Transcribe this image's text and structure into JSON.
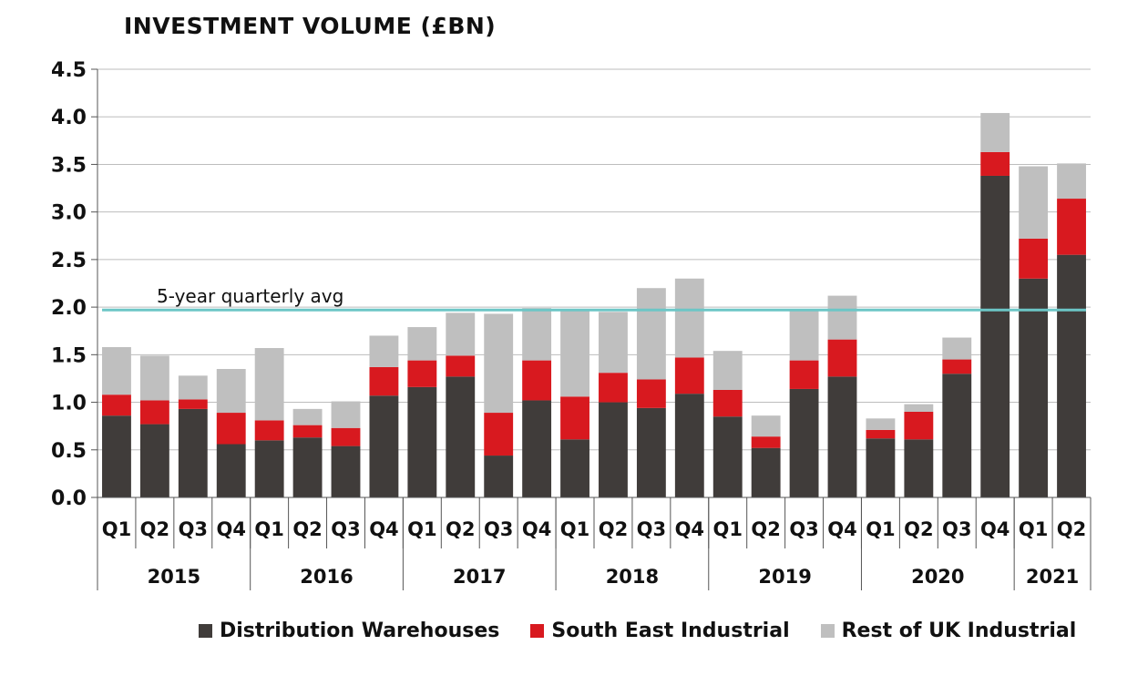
{
  "chart_data": {
    "type": "bar",
    "stacked": true,
    "title": "INVESTMENT VOLUME (£BN)",
    "ylim": [
      0,
      4.5
    ],
    "yticks": [
      "0.0",
      "0.5",
      "1.0",
      "1.5",
      "2.0",
      "2.5",
      "3.0",
      "3.5",
      "4.0",
      "4.5"
    ],
    "grid": true,
    "categories": [
      "Q1",
      "Q2",
      "Q3",
      "Q4",
      "Q1",
      "Q2",
      "Q3",
      "Q4",
      "Q1",
      "Q2",
      "Q3",
      "Q4",
      "Q1",
      "Q2",
      "Q3",
      "Q4",
      "Q1",
      "Q2",
      "Q3",
      "Q4",
      "Q1",
      "Q2",
      "Q3",
      "Q4",
      "Q1",
      "Q2"
    ],
    "years": [
      {
        "label": "2015",
        "count": 4
      },
      {
        "label": "2016",
        "count": 4
      },
      {
        "label": "2017",
        "count": 4
      },
      {
        "label": "2018",
        "count": 4
      },
      {
        "label": "2019",
        "count": 4
      },
      {
        "label": "2020",
        "count": 4
      },
      {
        "label": "2021",
        "count": 2
      }
    ],
    "series": [
      {
        "name": "Distribution Warehouses",
        "color": "#403c3a",
        "values": [
          0.86,
          0.77,
          0.93,
          0.56,
          0.6,
          0.63,
          0.54,
          1.07,
          1.16,
          1.27,
          0.44,
          1.02,
          0.61,
          1.0,
          0.94,
          1.09,
          0.85,
          0.52,
          1.14,
          1.27,
          0.62,
          0.61,
          1.3,
          3.38,
          2.3,
          2.55
        ]
      },
      {
        "name": "South East Industrial",
        "color": "#d8191f",
        "values": [
          0.22,
          0.25,
          0.1,
          0.33,
          0.21,
          0.13,
          0.19,
          0.3,
          0.28,
          0.22,
          0.45,
          0.42,
          0.45,
          0.31,
          0.3,
          0.38,
          0.28,
          0.12,
          0.3,
          0.39,
          0.09,
          0.29,
          0.15,
          0.25,
          0.42,
          0.59
        ]
      },
      {
        "name": "Rest of UK Industrial",
        "color": "#bfbfbf",
        "values": [
          0.5,
          0.47,
          0.25,
          0.46,
          0.76,
          0.17,
          0.28,
          0.33,
          0.35,
          0.45,
          1.04,
          0.55,
          0.9,
          0.64,
          0.96,
          0.83,
          0.41,
          0.22,
          0.52,
          0.46,
          0.12,
          0.08,
          0.23,
          0.41,
          0.76,
          0.37
        ]
      }
    ],
    "reference_line": {
      "label": "5-year quarterly avg",
      "value": 1.97,
      "color": "#6cc6c6"
    },
    "legend_position": "bottom"
  }
}
